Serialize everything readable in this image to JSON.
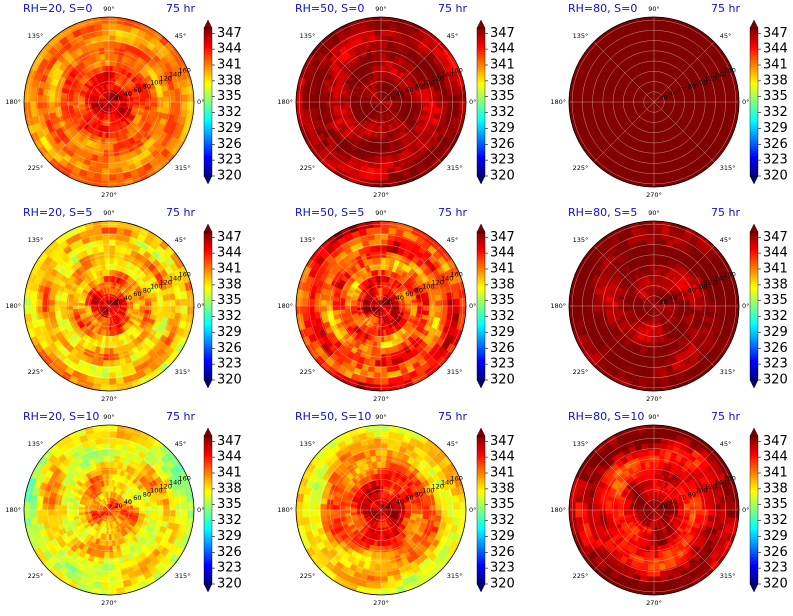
{
  "chart_data": {
    "type": "heatmap",
    "projection": "polar",
    "layout": {
      "rows": 3,
      "cols": 3
    },
    "colormap": "jet",
    "colorbar": {
      "vmin": 320,
      "vmax": 348,
      "ticks": [
        320,
        323,
        326,
        329,
        332,
        335,
        338,
        341,
        344,
        347
      ],
      "extend": "both"
    },
    "angular_ticks": [
      "0°",
      "45°",
      "90°",
      "135°",
      "180°",
      "225°",
      "270°",
      "315°"
    ],
    "radial_ticks": [
      "20",
      "40",
      "60",
      "80",
      "100",
      "120",
      "140",
      "160"
    ],
    "panels": [
      {
        "title": "RH=20, S=0",
        "time": "75 hr",
        "mean_by_radius": [
          347,
          346,
          344,
          343,
          342,
          341,
          341,
          341,
          341
        ],
        "variability": 2.5,
        "spiral": 1.0
      },
      {
        "title": "RH=50, S=0",
        "time": "75 hr",
        "mean_by_radius": [
          348,
          348,
          348,
          347,
          347,
          347,
          347,
          347,
          347
        ],
        "variability": 2.2,
        "spiral": 0.6
      },
      {
        "title": "RH=80, S=0",
        "time": "75 hr",
        "mean_by_radius": [
          348,
          348,
          348,
          348,
          348,
          348,
          348,
          348,
          348
        ],
        "variability": 0.2,
        "spiral": 0.0
      },
      {
        "title": "RH=20, S=5",
        "time": "75 hr",
        "mean_by_radius": [
          347,
          345,
          342,
          340,
          339,
          339,
          339,
          339,
          339
        ],
        "variability": 3.5,
        "spiral": 1.0
      },
      {
        "title": "RH=50, S=5",
        "time": "75 hr",
        "mean_by_radius": [
          348,
          346,
          344,
          342,
          342,
          342,
          343,
          343,
          344
        ],
        "variability": 4.0,
        "spiral": 0.9
      },
      {
        "title": "RH=80, S=5",
        "time": "75 hr",
        "mean_by_radius": [
          348,
          348,
          347,
          347,
          347,
          348,
          348,
          348,
          348
        ],
        "variability": 2.0,
        "spiral": 0.5
      },
      {
        "title": "RH=20, S=10",
        "time": "75 hr",
        "mean_by_radius": [
          344,
          341,
          340,
          339,
          338,
          338,
          338,
          337,
          336
        ],
        "variability": 3.5,
        "spiral": 0.6
      },
      {
        "title": "RH=50, S=10",
        "time": "75 hr",
        "mean_by_radius": [
          347,
          346,
          345,
          343,
          342,
          341,
          339,
          338,
          338
        ],
        "variability": 3.0,
        "spiral": 0.7
      },
      {
        "title": "RH=80, S=10",
        "time": "75 hr",
        "mean_by_radius": [
          348,
          348,
          346,
          345,
          344,
          344,
          346,
          347,
          348
        ],
        "variability": 2.8,
        "spiral": 0.6
      }
    ]
  }
}
